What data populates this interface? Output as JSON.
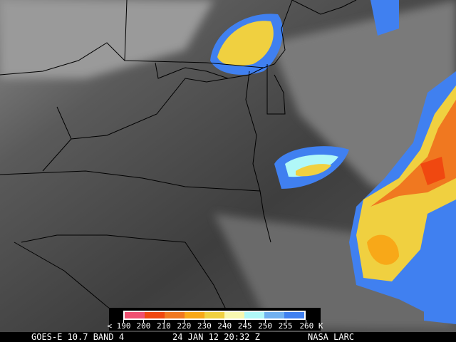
{
  "legend": {
    "bins": [
      {
        "label": "< 190",
        "color": "#f05070"
      },
      {
        "label": "200",
        "color": "#f04810"
      },
      {
        "label": "210",
        "color": "#f07820"
      },
      {
        "label": "220",
        "color": "#f8a818"
      },
      {
        "label": "230",
        "color": "#f0d040"
      },
      {
        "label": "240",
        "color": "#f8f8b0"
      },
      {
        "label": "245",
        "color": "#b0f8f8"
      },
      {
        "label": "250",
        "color": "#70b0f0"
      },
      {
        "label": "255",
        "color": "#4080f0"
      },
      {
        "label": "260 K",
        "color": ""
      }
    ]
  },
  "footer": {
    "satellite": "GOES-E 10.7 BAND 4",
    "datetime": "24 JAN 12 20:32 Z",
    "credit": "NASA LARC"
  }
}
